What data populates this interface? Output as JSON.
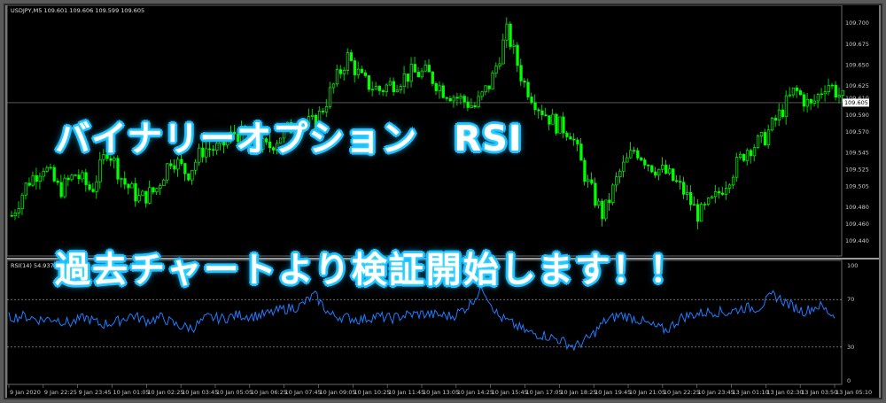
{
  "headline": {
    "line1": "バイナリーオプション　RSI",
    "line2": "過去チャートより検証開始します！！"
  },
  "price_panel": {
    "symbol_info": "USDJPY,M5  109.601 109.606 109.599 109.605",
    "current_price": "109.605",
    "price_ticks": [
      "109.700",
      "109.675",
      "109.650",
      "109.625",
      "109.610",
      "109.590",
      "109.570",
      "109.545",
      "109.525",
      "109.505",
      "109.480",
      "109.460",
      "109.440"
    ],
    "current_price_value": 109.605,
    "price_range": [
      109.425,
      109.715
    ],
    "candle_color": "#00ff00"
  },
  "rsi_panel": {
    "info": "RSI(14) 54.9378",
    "ticks": [
      "100",
      "70",
      "30",
      "0"
    ],
    "levels": [
      70,
      30
    ],
    "line_color": "#1e7cff"
  },
  "time_axis": {
    "labels": [
      "9 Jan 2020",
      "9 Jan 22:25",
      "9 Jan 23:45",
      "10 Jan 01:05",
      "10 Jan 02:25",
      "10 Jan 03:45",
      "10 Jan 05:05",
      "10 Jan 06:25",
      "10 Jan 07:45",
      "10 Jan 09:05",
      "10 Jan 10:25",
      "10 Jan 11:45",
      "10 Jan 13:05",
      "10 Jan 14:25",
      "10 Jan 15:45",
      "10 Jan 17:05",
      "10 Jan 18:25",
      "10 Jan 19:45",
      "10 Jan 21:05",
      "10 Jan 22:25",
      "10 Jan 23:45",
      "13 Jan 01:10",
      "13 Jan 02:30",
      "13 Jan 03:50",
      "13 Jan 05:10"
    ]
  },
  "chart_data": {
    "type": "line",
    "title": "",
    "price_anchors": [
      109.47,
      109.51,
      109.53,
      109.5,
      109.52,
      109.5,
      109.55,
      109.51,
      109.49,
      109.5,
      109.54,
      109.52,
      109.55,
      109.55,
      109.57,
      109.56,
      109.55,
      109.57,
      109.58,
      109.58,
      109.62,
      109.66,
      109.63,
      109.62,
      109.63,
      109.64,
      109.64,
      109.62,
      109.61,
      109.6,
      109.63,
      109.69,
      109.63,
      109.6,
      109.58,
      109.57,
      109.51,
      109.47,
      109.52,
      109.55,
      109.53,
      109.52,
      109.5,
      109.47,
      109.49,
      109.52,
      109.55,
      109.56,
      109.59,
      109.62,
      109.6,
      109.63,
      109.61
    ],
    "rsi_anchors": [
      55,
      56,
      53,
      54,
      50,
      55,
      49,
      51,
      57,
      52,
      55,
      48,
      46,
      55,
      54,
      57,
      56,
      58,
      62,
      64,
      74,
      57,
      55,
      53,
      56,
      54,
      57,
      58,
      57,
      56,
      64,
      80,
      56,
      49,
      42,
      40,
      36,
      30,
      38,
      52,
      57,
      54,
      48,
      44,
      55,
      58,
      60,
      59,
      63,
      63,
      74,
      66,
      60,
      65,
      56
    ],
    "rsi_range": [
      0,
      100
    ]
  }
}
